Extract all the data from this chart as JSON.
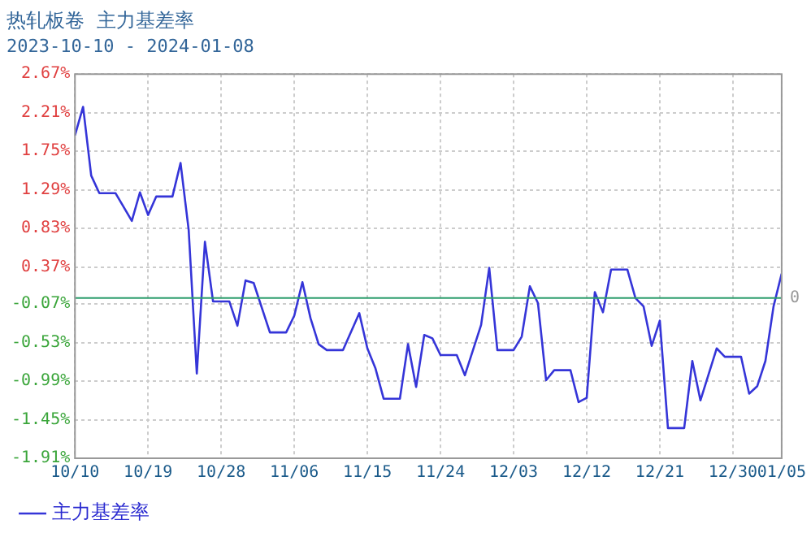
{
  "chart_data": {
    "type": "line",
    "title": "热轧板卷  主力基差率",
    "subtitle": "2023-10-10 - 2024-01-08",
    "x": [
      "2023-10-10",
      "2023-10-11",
      "2023-10-12",
      "2023-10-13",
      "2023-10-15",
      "2023-10-17",
      "2023-10-18",
      "2023-10-19",
      "2023-10-20",
      "2023-10-22",
      "2023-10-23",
      "2023-10-24",
      "2023-10-25",
      "2023-10-26",
      "2023-10-27",
      "2023-10-29",
      "2023-10-30",
      "2023-10-31",
      "2023-11-01",
      "2023-11-03",
      "2023-11-05",
      "2023-11-06",
      "2023-11-07",
      "2023-11-08",
      "2023-11-09",
      "2023-11-10",
      "2023-11-12",
      "2023-11-14",
      "2023-11-15",
      "2023-11-16",
      "2023-11-17",
      "2023-11-19",
      "2023-11-20",
      "2023-11-21",
      "2023-11-22",
      "2023-11-23",
      "2023-11-24",
      "2023-11-26",
      "2023-11-27",
      "2023-11-29",
      "2023-11-30",
      "2023-12-01",
      "2023-12-03",
      "2023-12-04",
      "2023-12-05",
      "2023-12-06",
      "2023-12-07",
      "2023-12-08",
      "2023-12-10",
      "2023-12-11",
      "2023-12-12",
      "2023-12-13",
      "2023-12-14",
      "2023-12-15",
      "2023-12-17",
      "2023-12-18",
      "2023-12-19",
      "2023-12-20",
      "2023-12-21",
      "2023-12-22",
      "2023-12-24",
      "2023-12-25",
      "2023-12-26",
      "2023-12-28",
      "2023-12-29",
      "2023-12-31",
      "2024-01-01",
      "2024-01-02",
      "2024-01-03",
      "2024-01-04",
      "2024-01-05"
    ],
    "series": [
      {
        "name": "主力基差率",
        "color": "#3535d8",
        "values": [
          1.94,
          2.28,
          1.46,
          1.25,
          1.25,
          0.92,
          1.26,
          0.99,
          1.21,
          1.21,
          1.61,
          0.81,
          -0.9,
          0.67,
          -0.04,
          -0.04,
          -0.33,
          0.21,
          0.18,
          -0.41,
          -0.41,
          -0.21,
          0.19,
          -0.24,
          -0.55,
          -0.62,
          -0.62,
          -0.18,
          -0.6,
          -0.84,
          -1.2,
          -1.2,
          -0.55,
          -1.06,
          -0.44,
          -0.48,
          -0.68,
          -0.68,
          -0.92,
          -0.32,
          0.36,
          -0.62,
          -0.62,
          -0.46,
          0.14,
          -0.06,
          -0.98,
          -0.86,
          -0.86,
          -1.24,
          -1.19,
          0.07,
          -0.17,
          0.34,
          0.34,
          0.0,
          -0.1,
          -0.57,
          -0.27,
          -1.55,
          -1.55,
          -0.75,
          -1.22,
          -0.6,
          -0.7,
          -0.7,
          -1.14,
          -1.05,
          -0.75,
          -0.1,
          0.29
        ]
      }
    ],
    "xlim": [
      "2023-10-10",
      "2024-01-05"
    ],
    "xticks": [
      {
        "value": "2023-10-10",
        "label": "10/10"
      },
      {
        "value": "2023-10-19",
        "label": "10/19"
      },
      {
        "value": "2023-10-28",
        "label": "10/28"
      },
      {
        "value": "2023-11-06",
        "label": "11/06"
      },
      {
        "value": "2023-11-15",
        "label": "11/15"
      },
      {
        "value": "2023-11-24",
        "label": "11/24"
      },
      {
        "value": "2023-12-03",
        "label": "12/03"
      },
      {
        "value": "2023-12-12",
        "label": "12/12"
      },
      {
        "value": "2023-12-21",
        "label": "12/21"
      },
      {
        "value": "2023-12-30",
        "label": "12/30"
      },
      {
        "value": "2024-01-05",
        "label": "01/05"
      }
    ],
    "ylim": [
      -1.91,
      2.67
    ],
    "yticks": [
      {
        "value": -1.91,
        "label": "-1.91%"
      },
      {
        "value": -1.45,
        "label": "-1.45%"
      },
      {
        "value": -0.99,
        "label": "-0.99%"
      },
      {
        "value": -0.53,
        "label": "-0.53%"
      },
      {
        "value": -0.07,
        "label": "-0.07%"
      },
      {
        "value": 0.37,
        "label": "0.37%"
      },
      {
        "value": 0.83,
        "label": "0.83%"
      },
      {
        "value": 1.29,
        "label": "1.29%"
      },
      {
        "value": 1.75,
        "label": "1.75%"
      },
      {
        "value": 2.21,
        "label": "2.21%"
      },
      {
        "value": 2.67,
        "label": "2.67%"
      }
    ],
    "ref_lines": [
      {
        "axis": "y",
        "value": 0,
        "label": "0",
        "color": "#2e9e6e"
      }
    ],
    "grid": true,
    "legend": "bottom",
    "marker": "none",
    "line_style": "solid"
  }
}
